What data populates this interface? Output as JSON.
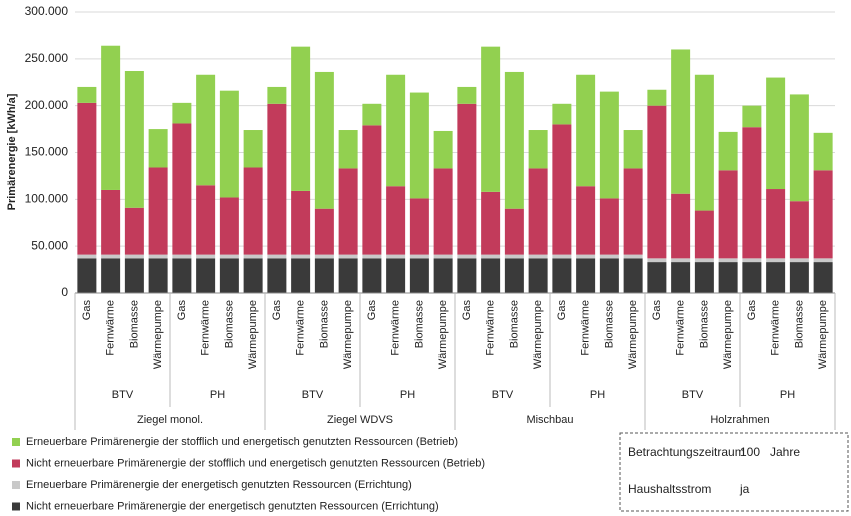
{
  "chart_data": {
    "type": "stacked-bar",
    "y_label": "Primärenergie [kWh/a]",
    "ylim": [
      0,
      300000
    ],
    "yticks": [
      {
        "value": 0,
        "label": "0"
      },
      {
        "value": 50000,
        "label": "50.000"
      },
      {
        "value": 100000,
        "label": "100.000"
      },
      {
        "value": 150000,
        "label": "150.000"
      },
      {
        "value": 200000,
        "label": "200.000"
      },
      {
        "value": 250000,
        "label": "250.000"
      },
      {
        "value": 300000,
        "label": "300.000"
      }
    ],
    "grid": true,
    "categories": [
      "Gas",
      "Fernwärme",
      "Biomasse",
      "Wärmepumpe",
      "Gas",
      "Fernwärme",
      "Biomasse",
      "Wärmepumpe",
      "Gas",
      "Fernwärme",
      "Biomasse",
      "Wärmepumpe",
      "Gas",
      "Fernwärme",
      "Biomasse",
      "Wärmepumpe",
      "Gas",
      "Fernwärme",
      "Biomasse",
      "Wärmepumpe",
      "Gas",
      "Fernwärme",
      "Biomasse",
      "Wärmepumpe",
      "Gas",
      "Fernwärme",
      "Biomasse",
      "Wärmepumpe",
      "Gas",
      "Fernwärme",
      "Biomasse",
      "Wärmepumpe"
    ],
    "standards": [
      "BTV",
      "PH",
      "BTV",
      "PH",
      "BTV",
      "PH",
      "BTV",
      "PH"
    ],
    "buildings": [
      "Ziegel monol.",
      "Ziegel WDVS",
      "Mischbau",
      "Holzrahmen"
    ],
    "series": [
      {
        "name": "Nicht erneuerbare Primärenergie der energetisch genutzten Ressourcen (Errichtung)",
        "color": "#3a3a3a",
        "values": [
          37000,
          37000,
          37000,
          37000,
          37000,
          37000,
          37000,
          37000,
          37000,
          37000,
          37000,
          37000,
          37000,
          37000,
          37000,
          37000,
          37000,
          37000,
          37000,
          37000,
          37000,
          37000,
          37000,
          37000,
          33000,
          33000,
          33000,
          33000,
          33000,
          33000,
          33000,
          33000
        ]
      },
      {
        "name": "Erneuerbare Primärenergie der energetisch genutzten Ressourcen (Errichtung)",
        "color": "#c9c9c9",
        "values": [
          4000,
          4000,
          4000,
          4000,
          4000,
          4000,
          4000,
          4000,
          4000,
          4000,
          4000,
          4000,
          4000,
          4000,
          4000,
          4000,
          4000,
          4000,
          4000,
          4000,
          4000,
          4000,
          4000,
          4000,
          4000,
          4000,
          4000,
          4000,
          4000,
          4000,
          4000,
          4000
        ]
      },
      {
        "name": "Nicht erneuerbare Primärenergie der stofflich und energetisch genutzten Ressourcen (Betrieb)",
        "color": "#c23b5b",
        "values": [
          162000,
          69000,
          50000,
          93000,
          140000,
          74000,
          61000,
          93000,
          161000,
          68000,
          49000,
          92000,
          138000,
          73000,
          60000,
          92000,
          161000,
          67000,
          49000,
          92000,
          139000,
          73000,
          60000,
          92000,
          163000,
          69000,
          51000,
          94000,
          140000,
          74000,
          61000,
          94000
        ]
      },
      {
        "name": "Erneuerbare Primärenergie der stofflich und energetisch genutzten Ressourcen (Betrieb)",
        "color": "#92d050",
        "values": [
          17000,
          154000,
          146000,
          41000,
          22000,
          118000,
          114000,
          40000,
          18000,
          154000,
          146000,
          41000,
          23000,
          119000,
          113000,
          40000,
          18000,
          155000,
          146000,
          41000,
          22000,
          119000,
          114000,
          41000,
          17000,
          154000,
          145000,
          41000,
          23000,
          119000,
          114000,
          40000
        ]
      }
    ]
  },
  "settings_box": {
    "period_label": "Betrachtungszeitraum",
    "period_value": "100",
    "period_unit": "Jahre",
    "household_label": "Haushaltsstrom",
    "household_value": "ja"
  }
}
